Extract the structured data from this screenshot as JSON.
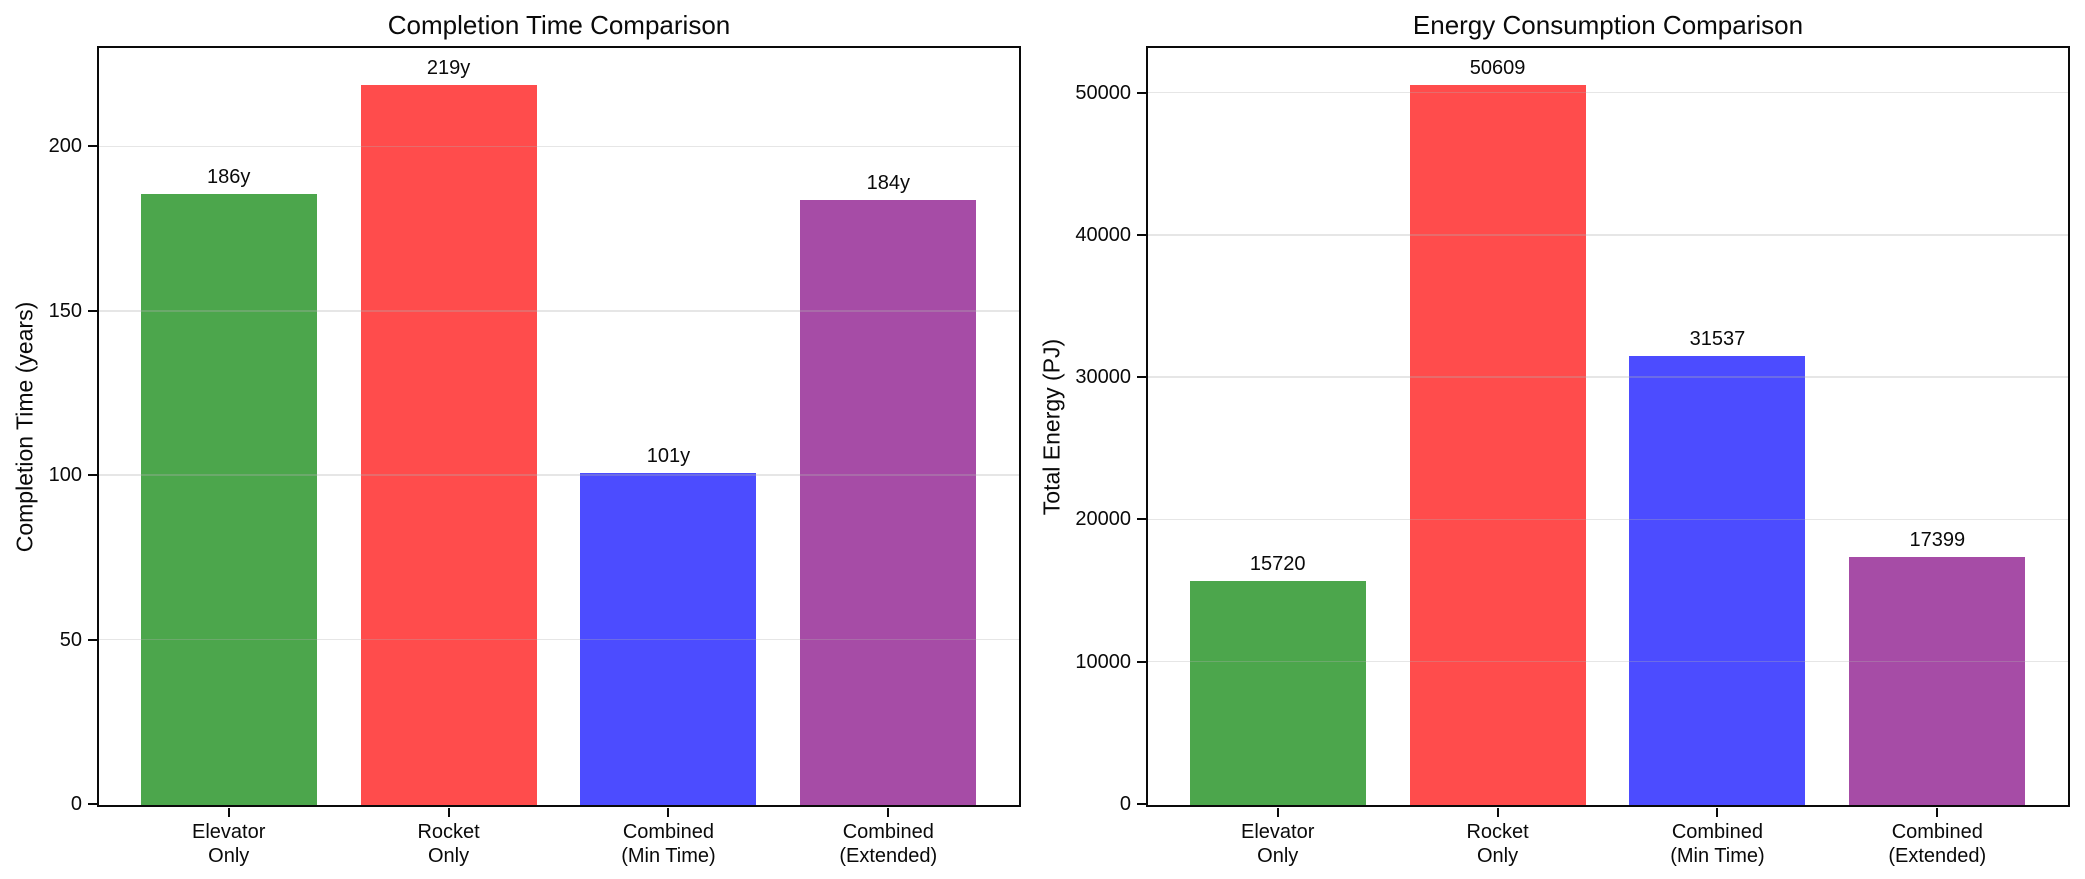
{
  "figure": {
    "background": "#ffffff",
    "text_color": "#000000",
    "spine_color": "#0a0a0a",
    "grid_color": "#b0b0b0",
    "grid_alpha": 0.3
  },
  "chart_data": [
    {
      "type": "bar",
      "title": "Completion Time Comparison",
      "xlabel": "",
      "ylabel": "Completion Time (years)",
      "categories": [
        "Elevator\nOnly",
        "Rocket\nOnly",
        "Combined\n(Min Time)",
        "Combined\n(Extended)"
      ],
      "values": [
        186,
        219,
        101,
        184
      ],
      "bar_labels": [
        "186y",
        "219y",
        "101y",
        "184y"
      ],
      "bar_colors": [
        "#4ca64c",
        "#ff4c4c",
        "#4c4cff",
        "#a64ca6"
      ],
      "yticks": [
        0,
        50,
        100,
        150,
        200
      ],
      "ylim": [
        0,
        229.95
      ],
      "xlim": [
        -0.59,
        3.59
      ],
      "bar_width": 0.8,
      "grid": "horizontal, light gray, drawn over bars",
      "legend": false
    },
    {
      "type": "bar",
      "title": "Energy Consumption Comparison",
      "xlabel": "",
      "ylabel": "Total Energy (PJ)",
      "categories": [
        "Elevator\nOnly",
        "Rocket\nOnly",
        "Combined\n(Min Time)",
        "Combined\n(Extended)"
      ],
      "values": [
        15720,
        50609,
        31537,
        17399
      ],
      "bar_labels": [
        "15720",
        "50609",
        "31537",
        "17399"
      ],
      "bar_colors": [
        "#4ca64c",
        "#ff4c4c",
        "#4c4cff",
        "#a64ca6"
      ],
      "yticks": [
        0,
        10000,
        20000,
        30000,
        40000,
        50000
      ],
      "ylim": [
        0,
        53139.45
      ],
      "xlim": [
        -0.59,
        3.59
      ],
      "bar_width": 0.8,
      "grid": "horizontal, light gray, drawn over bars",
      "legend": false
    }
  ]
}
